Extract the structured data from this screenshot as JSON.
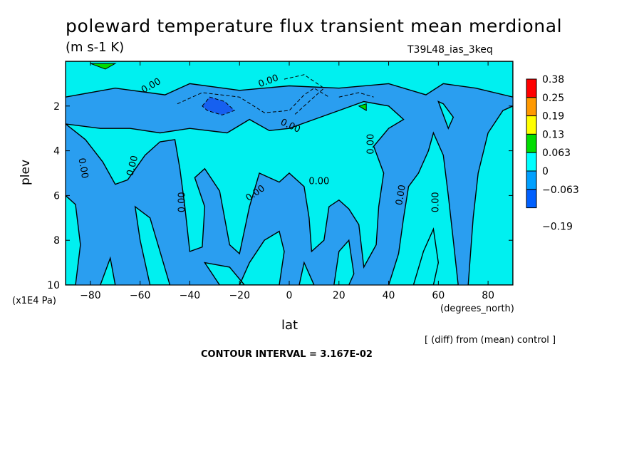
{
  "chart_data": {
    "type": "contour",
    "title": "poleward temperature flux transient mean merdional",
    "units": "(m s-1 K)",
    "run_label": "T39L48_ias_3keq",
    "xlabel": "lat",
    "x_units": "(degrees_north)",
    "ylabel": "plev",
    "y_units": "(x1E4 Pa)",
    "xlim": [
      -90,
      90
    ],
    "ylim": [
      10,
      0
    ],
    "x_ticks": [
      -80,
      -60,
      -40,
      -20,
      0,
      20,
      40,
      60,
      80
    ],
    "y_ticks": [
      2,
      4,
      6,
      8,
      10
    ],
    "contour_labels": [
      "0.00",
      "0.00",
      "0.00",
      "0.00",
      "0.00",
      "0.00",
      "0.00",
      "0.00",
      "0.00",
      "0.00",
      "0.00"
    ],
    "colorbar": {
      "levels": [
        "0.38",
        "0.25",
        "0.19",
        "0.13",
        "0.063",
        "0",
        "−0.063",
        "−0.19"
      ],
      "colors": [
        "#ff0000",
        "#ff9900",
        "#ffff00",
        "#00dd00",
        "#00ffff",
        "#00a0ff",
        "#0060ff"
      ]
    },
    "footer_note": "[ (diff) from (mean) control ]",
    "contour_interval": "CONTOUR INTERVAL = 3.167E-02",
    "fill_colors": {
      "negative": "#2a9ef0",
      "near_zero": "#00f0f0",
      "low_pos": "#00dd00",
      "low_neg": "#1660f0"
    }
  }
}
